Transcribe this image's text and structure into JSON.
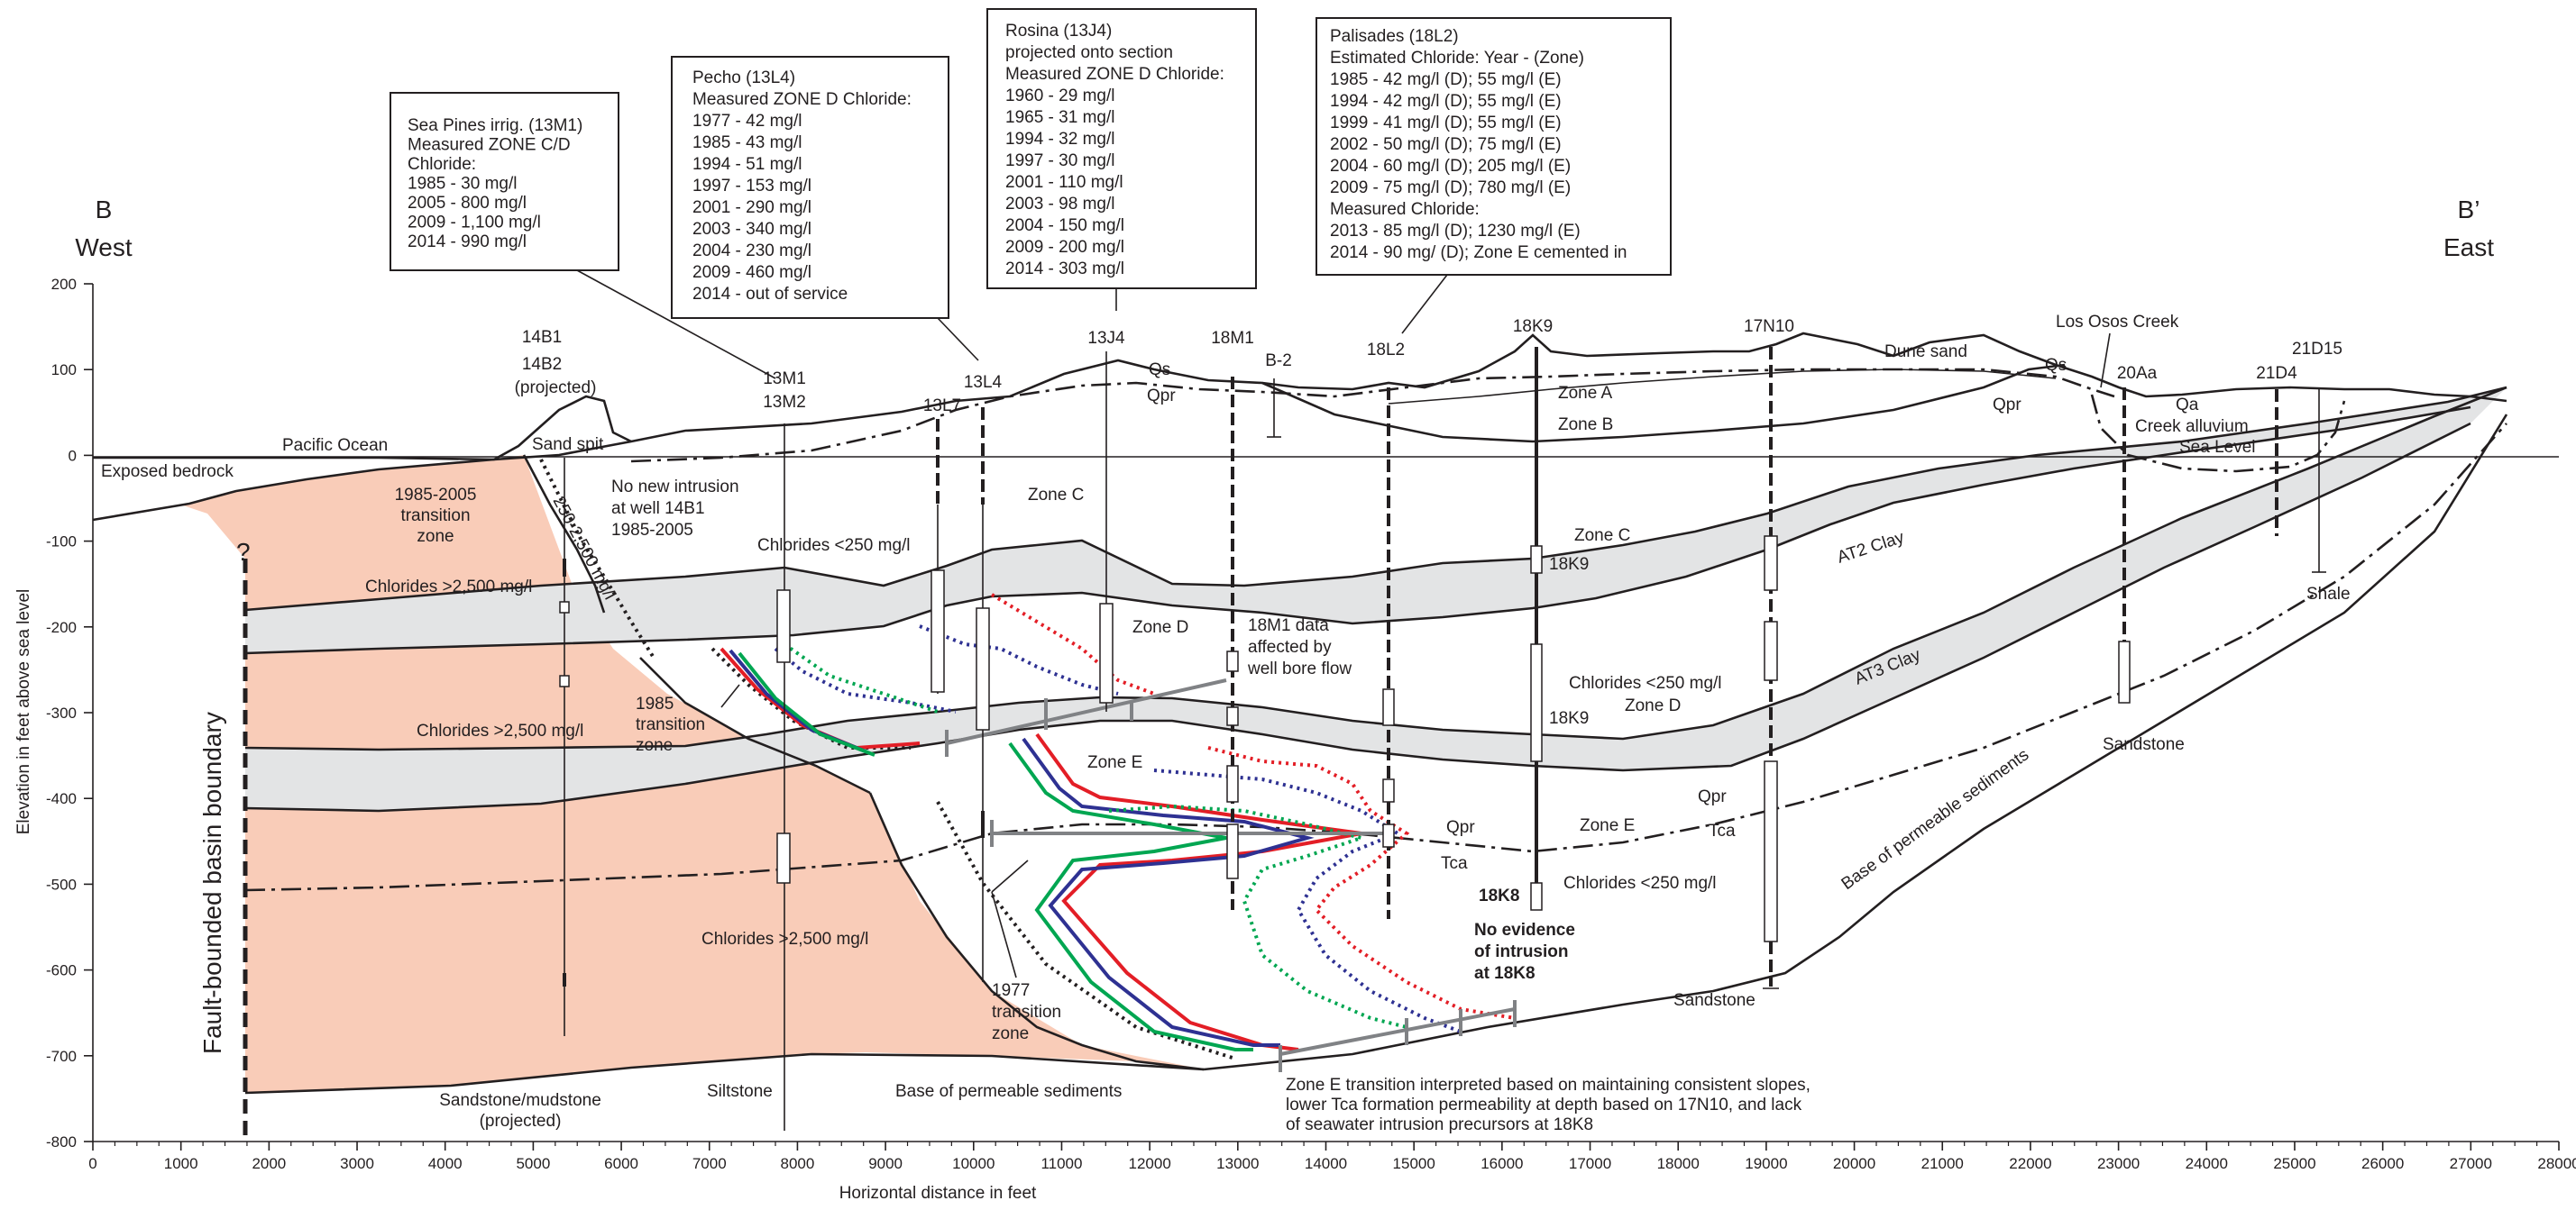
{
  "colors": {
    "saltwater_fill": "#f9ccb8",
    "clay_fill": "#e3e4e5",
    "line_black": "#231f20",
    "chloride_red": "#e31e26",
    "chloride_blue": "#2e3192",
    "chloride_green": "#00a651",
    "bracket_gray": "#808285"
  },
  "header": {
    "west_letter": "B",
    "west_label": "West",
    "east_letter": "B’",
    "east_label": "East"
  },
  "axes": {
    "x_title": "Horizontal distance in feet",
    "y_title": "Elevation in feet above sea level",
    "x_ticks": [
      "0",
      "1000",
      "2000",
      "3000",
      "4000",
      "5000",
      "6000",
      "7000",
      "8000",
      "9000",
      "10000",
      "11000",
      "12000",
      "13000",
      "14000",
      "15000",
      "16000",
      "17000",
      "18000",
      "19000",
      "20000",
      "21000",
      "22000",
      "23000",
      "24000",
      "25000",
      "26000",
      "27000",
      "28000"
    ],
    "y_ticks": [
      "200",
      "100",
      "0",
      "-100",
      "-200",
      "-300",
      "-400",
      "-500",
      "-600",
      "-700",
      "-800"
    ]
  },
  "boxes": {
    "sea_pines": [
      "Sea Pines irrig. (13M1)",
      "Measured ZONE C/D",
      "Chloride:",
      "1985 - 30 mg/l",
      "2005 - 800 mg/l",
      "2009 - 1,100 mg/l",
      "2014 - 990 mg/l"
    ],
    "pecho": [
      "Pecho (13L4)",
      "Measured ZONE D Chloride:",
      "1977 - 42 mg/l",
      "1985 - 43 mg/l",
      "1994 - 51 mg/l",
      "1997 - 153 mg/l",
      "2001 - 290 mg/l",
      "2003 - 340 mg/l",
      "2004 - 230 mg/l",
      "2009 - 460 mg/l",
      "2014 - out of service"
    ],
    "rosina": [
      "Rosina (13J4)",
      "projected onto section",
      "Measured ZONE D Chloride:",
      "1960 - 29 mg/l",
      "1965 - 31 mg/l",
      "1994 - 32 mg/l",
      "1997 - 30 mg/l",
      "2001 - 110 mg/l",
      "2003 - 98 mg/l",
      "2004 - 150 mg/l",
      "2009 - 200 mg/l",
      "2014 - 303 mg/l"
    ],
    "palisades": [
      "Palisades (18L2)",
      "Estimated Chloride: Year - (Zone)",
      "1985 - 42 mg/l (D); 55 mg/l (E)",
      "1994 - 42 mg/l (D); 55 mg/l (E)",
      "1999 - 41 mg/l (D); 55 mg/l (E)",
      "2002 - 50 mg/l (D); 75 mg/l (E)",
      "2004 - 60 mg/l (D); 205 mg/l (E)",
      "2009 - 75 mg/l (D); 780 mg/l (E)",
      "Measured Chloride:",
      "2013 - 85 mg/l (D); 1230 mg/l (E)",
      "2014 - 90 mg/ (D); Zone E cemented in"
    ]
  },
  "wells": {
    "w14b1": "14B1",
    "w14b2": "14B2",
    "w14b2_note": "(projected)",
    "w13m1": "13M1",
    "w13m2": "13M2",
    "w13l7": "13L7",
    "w13l4": "13L4",
    "w13j4": "13J4",
    "w18m1": "18M1",
    "wb2": "B-2",
    "w18l2": "18L2",
    "w18k9": "18K9",
    "w17n10": "17N10",
    "w20aa": "20Aa",
    "w21d4": "21D4",
    "w21d15": "21D15",
    "w18k9_c": "18K9",
    "w18k9_d": "18K9",
    "w18k8": "18K8"
  },
  "labels": {
    "pacific_ocean": "Pacific Ocean",
    "exposed_bedrock": "Exposed bedrock",
    "sand_spit": "Sand spit",
    "question": "?",
    "transition_1985_2005": [
      "1985-2005",
      "transition",
      "zone"
    ],
    "no_new_intrusion": [
      "No new intrusion",
      "at well 14B1",
      "1985-2005"
    ],
    "diag_250": "250-2,500 mg/l",
    "chlorides_gt_top": "Chlorides >2,500 mg/l",
    "chlorides_gt_mid": "Chlorides >2,500 mg/l",
    "chlorides_gt_low": "Chlorides >2,500 mg/l",
    "chlorides_lt_c": "Chlorides <250 mg/l",
    "transition_1985": [
      "1985",
      "transition",
      "zone"
    ],
    "transition_1977": [
      "1977",
      "transition",
      "zone"
    ],
    "fault_boundary": "Fault-bounded basin boundary",
    "zone_c_west": "Zone C",
    "zone_c_east": "Zone C",
    "zone_d_west": "Zone D",
    "zone_d_east": "Zone D",
    "zone_e_west": "Zone E",
    "zone_e_east": "Zone E",
    "zone_a": "Zone A",
    "zone_b": "Zone B",
    "qs_west": "Qs",
    "qpr_west": "Qpr",
    "qs_east": "Qs",
    "qpr_east": "Qpr",
    "qpr_mid": "Qpr",
    "tca_mid": "Tca",
    "qpr_right": "Qpr",
    "tca_right": "Tca",
    "dune_sand": "Dune sand",
    "los_osos_creek": "Los Osos Creek",
    "qa": "Qa",
    "creek_alluvium": "Creek alluvium",
    "sea_level": "Sea Level",
    "at2_clay": "AT2 Clay",
    "at3_clay": "AT3 Clay",
    "shale": "Shale",
    "sandstone_east": "Sandstone",
    "sandstone_mid": "Sandstone",
    "sandstone_mudstone": [
      "Sandstone/mudstone",
      "(projected)"
    ],
    "siltstone": "Siltstone",
    "base_permeable_west": "Base of permeable sediments",
    "base_permeable_east": "Base of permeable sediments",
    "m18_note": [
      "18M1 data",
      "affected by",
      "well bore flow"
    ],
    "chlorides_lt_d": "Chlorides <250 mg/l",
    "chlorides_lt_e": "Chlorides <250 mg/l",
    "no_evidence": [
      "No evidence",
      "of intrusion",
      "at 18K8"
    ],
    "zone_e_note": [
      "Zone E transition interpreted based on maintaining consistent slopes,",
      "lower Tca formation permeability at depth based on 17N10, and lack",
      "of seawater intrusion precursors at 18K8"
    ]
  }
}
